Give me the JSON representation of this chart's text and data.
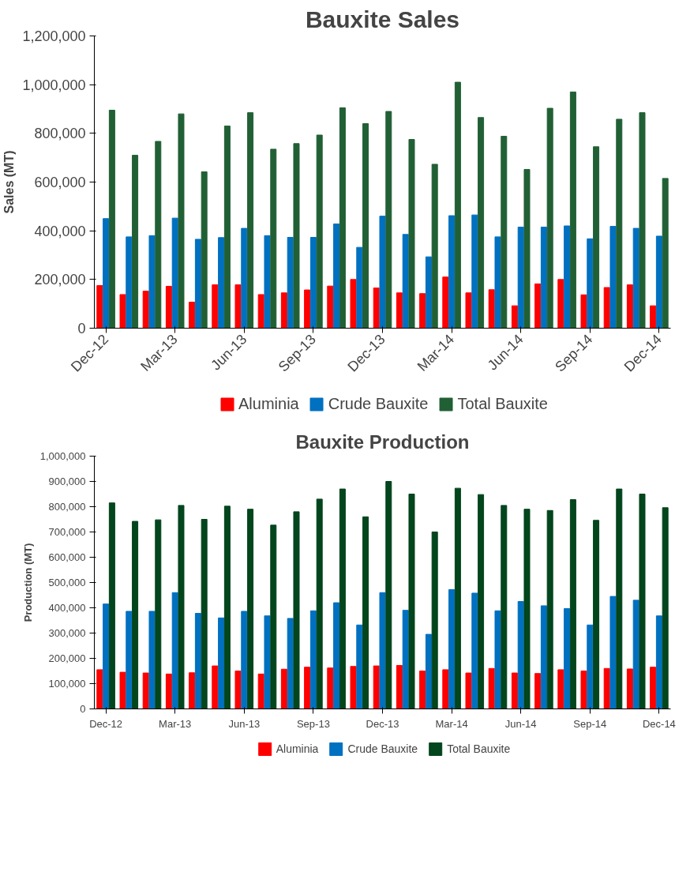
{
  "chart_data": [
    {
      "type": "bar",
      "title": "Bauxite Sales",
      "ylabel": "Sales (MT)",
      "categories": [
        "Dec-12",
        null,
        null,
        "Mar-13",
        null,
        null,
        "Jun-13",
        null,
        null,
        "Sep-13",
        null,
        null,
        "Dec-13",
        null,
        null,
        "Mar-14",
        null,
        null,
        "Jun-14",
        null,
        null,
        "Sep-14",
        null,
        null,
        "Dec-14"
      ],
      "series": [
        {
          "name": "Aluminia",
          "color": "#ff0000",
          "values": [
            175000,
            138000,
            152000,
            172000,
            107000,
            178000,
            178000,
            138000,
            145000,
            157000,
            173000,
            200000,
            165000,
            145000,
            142000,
            210000,
            145000,
            158000,
            92000,
            182000,
            200000,
            137000,
            167000,
            178000,
            92000
          ]
        },
        {
          "name": "Crude Bauxite",
          "color": "#0070c0",
          "values": [
            450000,
            375000,
            380000,
            452000,
            365000,
            372000,
            410000,
            380000,
            373000,
            373000,
            428000,
            332000,
            460000,
            385000,
            293000,
            462000,
            465000,
            375000,
            415000,
            415000,
            420000,
            367000,
            418000,
            410000,
            378000
          ]
        },
        {
          "name": "Total Bauxite",
          "color": "#216035",
          "values": [
            895000,
            710000,
            767000,
            880000,
            642000,
            830000,
            885000,
            735000,
            758000,
            793000,
            905000,
            840000,
            890000,
            775000,
            673000,
            1010000,
            865000,
            788000,
            652000,
            903000,
            970000,
            745000,
            858000,
            885000,
            615000
          ]
        }
      ],
      "ylim": [
        0,
        1200000
      ],
      "yticks": [
        0,
        {
          "value": 200000,
          "label": "200,000"
        },
        {
          "value": 400000,
          "label": "400,000"
        },
        {
          "value": 600000,
          "label": "600,000"
        },
        {
          "value": 800000,
          "label": "800,000"
        },
        {
          "value": 1000000,
          "label": "1,000,000"
        },
        {
          "value": 1200000,
          "label": "1,200,000"
        }
      ],
      "grid": false,
      "legend": "bottom"
    },
    {
      "type": "bar",
      "title": "Bauxite Production",
      "ylabel": "Production (MT)",
      "categories": [
        "Dec-12",
        null,
        null,
        "Mar-13",
        null,
        null,
        "Jun-13",
        null,
        null,
        "Sep-13",
        null,
        null,
        "Dec-13",
        null,
        null,
        "Mar-14",
        null,
        null,
        "Jun-14",
        null,
        null,
        "Sep-14",
        null,
        null,
        "Dec-14"
      ],
      "series": [
        {
          "name": "Aluminia",
          "color": "#ff0000",
          "values": [
            155000,
            145000,
            142000,
            138000,
            143000,
            170000,
            150000,
            138000,
            157000,
            165000,
            162000,
            168000,
            170000,
            172000,
            150000,
            155000,
            142000,
            160000,
            142000,
            140000,
            155000,
            150000,
            160000,
            158000,
            165000
          ]
        },
        {
          "name": "Crude Bauxite",
          "color": "#0070c0",
          "values": [
            415000,
            386000,
            386000,
            460000,
            378000,
            360000,
            386000,
            368000,
            358000,
            388000,
            420000,
            332000,
            460000,
            390000,
            295000,
            472000,
            458000,
            388000,
            425000,
            408000,
            397000,
            332000,
            445000,
            430000,
            368000
          ]
        },
        {
          "name": "Total Bauxite",
          "color": "#03451c",
          "values": [
            815000,
            742000,
            748000,
            805000,
            750000,
            802000,
            790000,
            727000,
            780000,
            830000,
            870000,
            760000,
            900000,
            850000,
            700000,
            873000,
            848000,
            805000,
            790000,
            785000,
            828000,
            746000,
            870000,
            850000,
            796000
          ]
        }
      ],
      "ylim": [
        0,
        1000000
      ],
      "yticks": [
        0,
        {
          "value": 100000,
          "label": "100,000"
        },
        {
          "value": 200000,
          "label": "200,000"
        },
        {
          "value": 300000,
          "label": "300,000"
        },
        {
          "value": 400000,
          "label": "400,000"
        },
        {
          "value": 500000,
          "label": "500,000"
        },
        {
          "value": 600000,
          "label": "600,000"
        },
        {
          "value": 700000,
          "label": "700,000"
        },
        {
          "value": 800000,
          "label": "800,000"
        },
        {
          "value": 900000,
          "label": "900,000"
        },
        {
          "value": 1000000,
          "label": "1,000,000"
        }
      ],
      "grid": false,
      "legend": "bottom"
    }
  ]
}
